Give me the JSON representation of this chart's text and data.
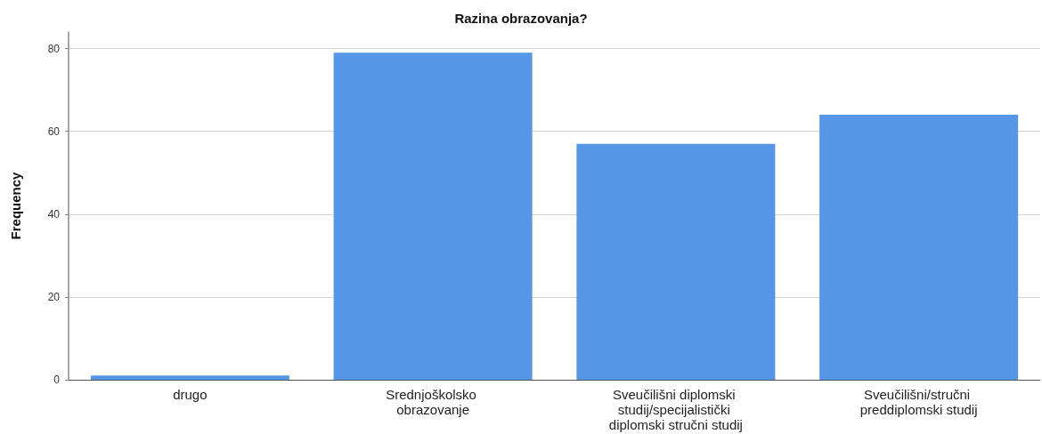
{
  "chart_data": {
    "type": "bar",
    "title": "Razina obrazovanja?",
    "ylabel": "Frequency",
    "categories": [
      "drugo",
      "Srednjoškolsko obrazovanje",
      "Sveučilišni diplomski studij/specijalistički diplomski stručni studij",
      "Sveučilišni/stručni preddiplomski studij"
    ],
    "values": [
      1,
      79,
      57,
      64
    ],
    "color": "#5596e6",
    "ylim": [
      0,
      84
    ],
    "yticks": [
      0,
      20,
      40,
      60,
      80
    ],
    "grid": "y"
  }
}
